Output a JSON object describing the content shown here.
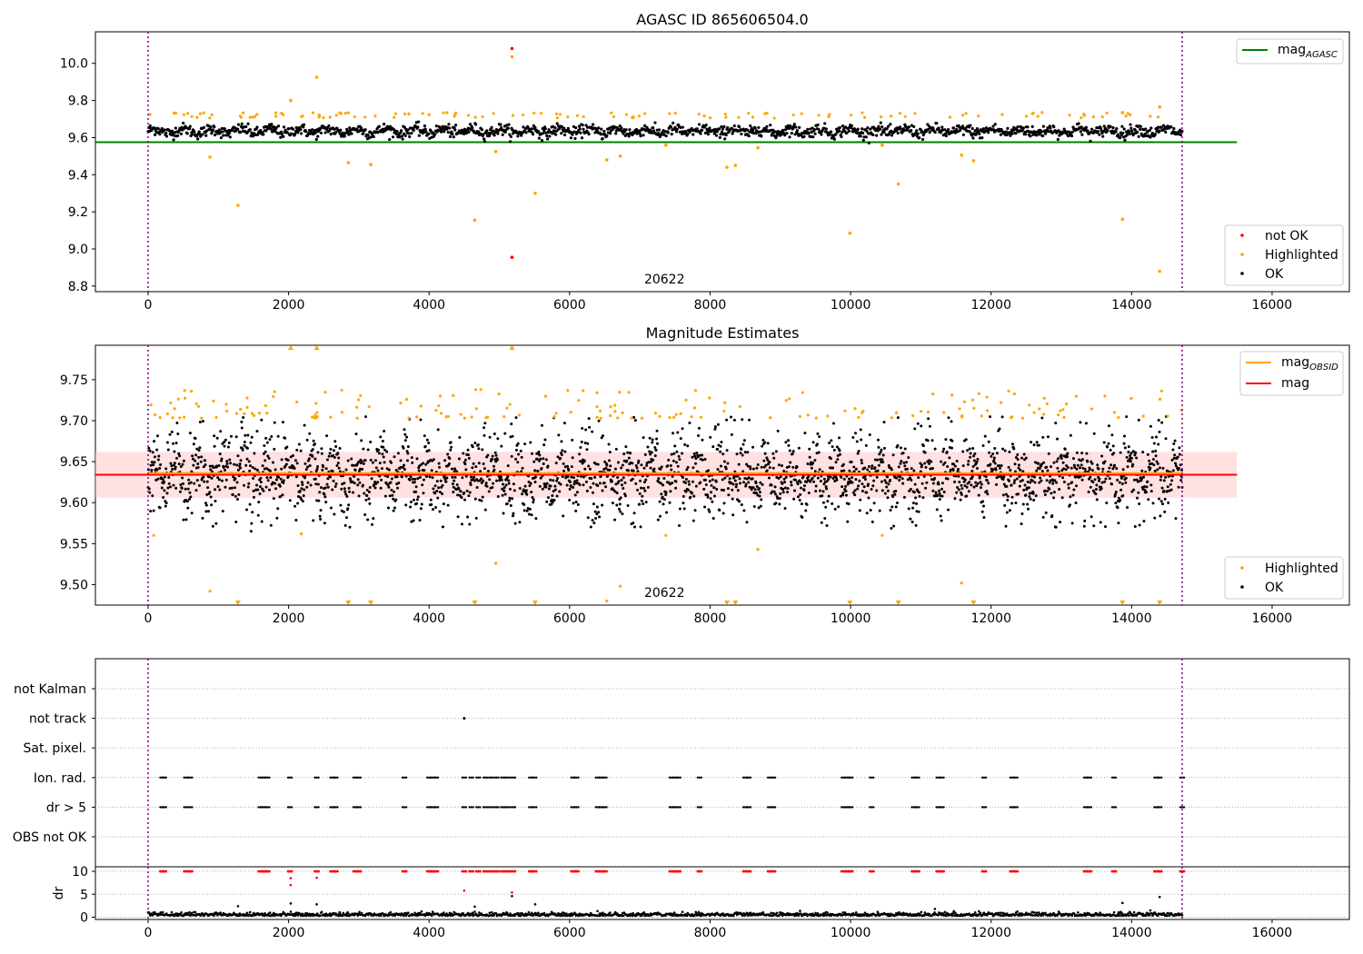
{
  "chart_data": [
    {
      "type": "scatter",
      "title": "AGASC ID 865606504.0",
      "xlim": [
        -750,
        17100
      ],
      "ylim": [
        8.77,
        10.17
      ],
      "xticks": [
        0,
        2000,
        4000,
        6000,
        8000,
        10000,
        12000,
        14000,
        16000
      ],
      "yticks": [
        "8.8",
        "9.0",
        "9.2",
        "9.4",
        "9.6",
        "9.8",
        "10.0"
      ],
      "obsid_label": "20622",
      "obsid_label_x": 7350,
      "vlines_x": [
        0,
        14720
      ],
      "hline": {
        "name": "mag_AGASC",
        "y": 9.575,
        "xmin": -750,
        "xmax": 15500,
        "color": "#008000"
      },
      "band": {
        "center": 9.635,
        "sigma": 0.028
      },
      "outliers": [
        {
          "x": 5180,
          "y": 10.08,
          "status": "not OK"
        },
        {
          "x": 5180,
          "y": 8.955,
          "status": "not OK"
        },
        {
          "x": 5180,
          "y": 10.035,
          "status": "Highlighted"
        },
        {
          "x": 2400,
          "y": 9.925,
          "status": "Highlighted"
        },
        {
          "x": 2030,
          "y": 9.8,
          "status": "Highlighted"
        },
        {
          "x": 880,
          "y": 9.495,
          "status": "Highlighted"
        },
        {
          "x": 1280,
          "y": 9.235,
          "status": "Highlighted"
        },
        {
          "x": 2850,
          "y": 9.465,
          "status": "Highlighted"
        },
        {
          "x": 3170,
          "y": 9.455,
          "status": "Highlighted"
        },
        {
          "x": 4650,
          "y": 9.155,
          "status": "Highlighted"
        },
        {
          "x": 4950,
          "y": 9.525,
          "status": "Highlighted"
        },
        {
          "x": 5510,
          "y": 9.3,
          "status": "Highlighted"
        },
        {
          "x": 6530,
          "y": 9.48,
          "status": "Highlighted"
        },
        {
          "x": 6720,
          "y": 9.5,
          "status": "Highlighted"
        },
        {
          "x": 7370,
          "y": 9.56,
          "status": "Highlighted"
        },
        {
          "x": 8240,
          "y": 9.44,
          "status": "Highlighted"
        },
        {
          "x": 8360,
          "y": 9.45,
          "status": "Highlighted"
        },
        {
          "x": 8680,
          "y": 9.545,
          "status": "Highlighted"
        },
        {
          "x": 9990,
          "y": 9.085,
          "status": "Highlighted"
        },
        {
          "x": 10450,
          "y": 9.56,
          "status": "Highlighted"
        },
        {
          "x": 10680,
          "y": 9.35,
          "status": "Highlighted"
        },
        {
          "x": 11580,
          "y": 9.505,
          "status": "Highlighted"
        },
        {
          "x": 11750,
          "y": 9.475,
          "status": "Highlighted"
        },
        {
          "x": 13870,
          "y": 9.16,
          "status": "Highlighted"
        },
        {
          "x": 13870,
          "y": 9.735,
          "status": "Highlighted"
        },
        {
          "x": 14400,
          "y": 8.88,
          "status": "Highlighted"
        },
        {
          "x": 14400,
          "y": 9.765,
          "status": "Highlighted"
        }
      ],
      "legend_lines": [
        {
          "label": "mag",
          "subscript": "AGASC",
          "color": "#008000"
        }
      ],
      "legend_points": [
        {
          "label": "not OK",
          "color": "#ff0000"
        },
        {
          "label": "Highlighted",
          "color": "#ffa500"
        },
        {
          "label": "OK",
          "color": "#000000"
        }
      ]
    },
    {
      "type": "scatter",
      "title": "Magnitude Estimates",
      "xlim": [
        -750,
        17100
      ],
      "ylim": [
        9.475,
        9.792
      ],
      "xticks": [
        0,
        2000,
        4000,
        6000,
        8000,
        10000,
        12000,
        14000,
        16000
      ],
      "yticks": [
        "9.50",
        "9.55",
        "9.60",
        "9.65",
        "9.70",
        "9.75"
      ],
      "obsid_label": "20622",
      "obsid_label_x": 7350,
      "vlines_x": [
        0,
        14720
      ],
      "mag_line": {
        "name": "mag",
        "y": 9.634,
        "xmin": -750,
        "xmax": 15500,
        "color": "#ff0000"
      },
      "mag_obsid_line": {
        "name": "mag_OBSID",
        "y": 9.636,
        "xmin": 0,
        "xmax": 14720,
        "color": "#ffa500"
      },
      "band": {
        "lower": 9.606,
        "upper": 9.662,
        "color": "#ffc8c8"
      },
      "outliers": [
        {
          "x": 80,
          "y": 9.56
        },
        {
          "x": 880,
          "y": 9.492
        },
        {
          "x": 2180,
          "y": 9.562
        },
        {
          "x": 4950,
          "y": 9.526
        },
        {
          "x": 6530,
          "y": 9.48
        },
        {
          "x": 6720,
          "y": 9.498
        },
        {
          "x": 7370,
          "y": 9.56
        },
        {
          "x": 8680,
          "y": 9.543
        },
        {
          "x": 10450,
          "y": 9.56
        },
        {
          "x": 11580,
          "y": 9.502
        }
      ],
      "offscale_high_x": [
        2030,
        2400,
        5180
      ],
      "offscale_low_x": [
        1280,
        2850,
        3170,
        4650,
        5510,
        8240,
        8360,
        9990,
        10680,
        11750,
        13870,
        14400
      ],
      "legend_lines": [
        {
          "label": "mag",
          "subscript": "OBSID",
          "color": "#ffa500"
        },
        {
          "label": "mag",
          "subscript": "",
          "color": "#ff0000"
        }
      ],
      "legend_points": [
        {
          "label": "Highlighted",
          "color": "#ffa500"
        },
        {
          "label": "OK",
          "color": "#000000"
        }
      ]
    },
    {
      "type": "scatter",
      "title": "",
      "xlim": [
        -750,
        17100
      ],
      "xticks": [
        0,
        2000,
        4000,
        6000,
        8000,
        10000,
        12000,
        14000,
        16000
      ],
      "vlines_x": [
        0,
        14720
      ],
      "flag_rows": [
        "not Kalman",
        "not track",
        "Sat. pixel.",
        "Ion. rad.",
        "dr > 5",
        "OBS not OK"
      ],
      "flag_events_x": [
        200,
        230,
        540,
        600,
        1600,
        1650,
        1700,
        2020,
        2400,
        2620,
        2670,
        2950,
        3000,
        3650,
        4000,
        4050,
        4100,
        4500,
        4600,
        4700,
        4800,
        4880,
        4960,
        5050,
        5120,
        5200,
        5450,
        5500,
        6050,
        6100,
        6400,
        6450,
        6500,
        7450,
        7500,
        7550,
        7850,
        8500,
        8550,
        8850,
        8900,
        9900,
        9950,
        10000,
        10300,
        10900,
        10950,
        11250,
        11300,
        11900,
        12300,
        12350,
        13350,
        13400,
        13750,
        14350,
        14400,
        14720
      ],
      "not_track_x": [
        4500
      ],
      "dr_ylabel": "dr",
      "dr_ylim": [
        -0.5,
        11
      ],
      "dr_yticks": [
        "0",
        "5",
        "10"
      ],
      "dr_spikes": [
        {
          "x": 1280,
          "y": 2.4
        },
        {
          "x": 2030,
          "y": 3.0
        },
        {
          "x": 2030,
          "y": 7.0
        },
        {
          "x": 2030,
          "y": 8.5
        },
        {
          "x": 2400,
          "y": 2.8
        },
        {
          "x": 2400,
          "y": 8.6
        },
        {
          "x": 4500,
          "y": 5.8
        },
        {
          "x": 4650,
          "y": 2.3
        },
        {
          "x": 5180,
          "y": 4.6
        },
        {
          "x": 5180,
          "y": 5.4
        },
        {
          "x": 5510,
          "y": 2.8
        },
        {
          "x": 11200,
          "y": 1.8
        },
        {
          "x": 13870,
          "y": 3.1
        },
        {
          "x": 14400,
          "y": 4.4
        }
      ]
    }
  ]
}
